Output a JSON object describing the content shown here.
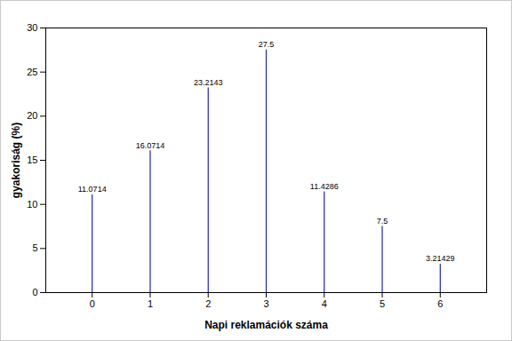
{
  "chart_data": {
    "type": "bar",
    "x": [
      0,
      1,
      2,
      3,
      4,
      5,
      6
    ],
    "values": [
      11.0714,
      16.0714,
      23.2143,
      27.5,
      11.4286,
      7.5,
      3.21429
    ],
    "color": "#2424a8",
    "xlabel": "Napi reklamációk száma",
    "ylabel": "gyakoriság (%)",
    "xlim": [
      -0.8,
      6.8
    ],
    "xticks": [
      0,
      1,
      2,
      3,
      4,
      5,
      6
    ],
    "ylim": [
      0,
      30
    ],
    "yticks": [
      0,
      5,
      10,
      15,
      20,
      25,
      30
    ],
    "grid": false,
    "data_labels": true
  }
}
